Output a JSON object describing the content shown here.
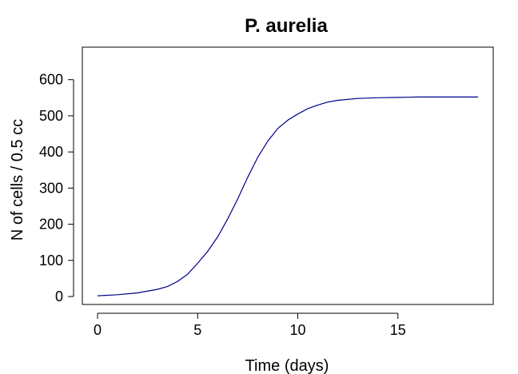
{
  "chart_data": {
    "type": "line",
    "title": "P. aurelia",
    "xlabel": "Time (days)",
    "ylabel": "N of cells / 0.5 cc",
    "xlim": [
      -0.76,
      19.76
    ],
    "ylim": [
      -22,
      690
    ],
    "xticks": [
      0,
      5,
      10,
      15
    ],
    "yticks": [
      0,
      100,
      200,
      300,
      400,
      500,
      600
    ],
    "grid": false,
    "line_color": "#00008b",
    "series": [
      {
        "x": [
          0,
          1,
          2,
          3,
          3.5,
          4,
          4.5,
          5,
          5.5,
          6,
          6.5,
          7,
          7.5,
          8,
          8.5,
          9,
          9.5,
          10,
          10.5,
          11,
          11.5,
          12,
          13,
          14,
          15,
          16,
          17,
          18,
          19
        ],
        "values": [
          2,
          5,
          10,
          20,
          28,
          42,
          62,
          92,
          125,
          165,
          215,
          270,
          330,
          385,
          430,
          465,
          488,
          505,
          520,
          530,
          538,
          543,
          548,
          550,
          551,
          552,
          552,
          552,
          552
        ]
      }
    ]
  }
}
